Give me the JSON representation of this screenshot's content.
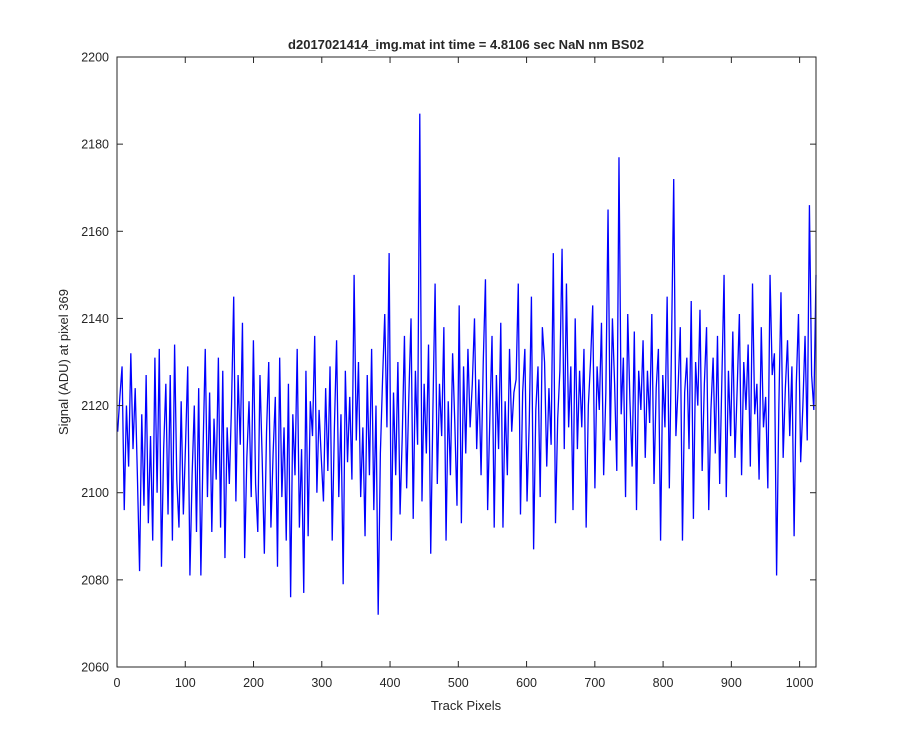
{
  "chart_data": {
    "type": "line",
    "title": "d2017021414_img.mat int time = 4.8106 sec  NaN nm BS02",
    "xlabel": "Track Pixels",
    "ylabel": "Signal (ADU) at pixel 369",
    "xlim": [
      0,
      1024
    ],
    "ylim": [
      2060,
      2200
    ],
    "xticks": [
      0,
      100,
      200,
      300,
      400,
      500,
      600,
      700,
      800,
      900,
      1000
    ],
    "yticks": [
      2060,
      2080,
      2100,
      2120,
      2140,
      2160,
      2180,
      2200
    ],
    "xtick_labels": [
      "0",
      "100",
      "200",
      "300",
      "400",
      "500",
      "600",
      "700",
      "800",
      "900",
      "1000"
    ],
    "ytick_labels": [
      "2060",
      "2080",
      "2100",
      "2120",
      "2140",
      "2160",
      "2180",
      "2200"
    ],
    "grid": false,
    "legend": "none",
    "series": [
      {
        "color": "#0000ff",
        "x_start": 1,
        "x_step": 1,
        "values": [
          2114,
          2122,
          2129,
          2096,
          2120,
          2106,
          2132,
          2110,
          2124,
          2104,
          2082,
          2118,
          2097,
          2127,
          2093,
          2113,
          2089,
          2131,
          2100,
          2133,
          2083,
          2110,
          2125,
          2095,
          2127,
          2089,
          2134,
          2103,
          2092,
          2121,
          2095,
          2111,
          2129,
          2081,
          2104,
          2120,
          2091,
          2124,
          2081,
          2110,
          2133,
          2099,
          2123,
          2091,
          2117,
          2103,
          2131,
          2092,
          2128,
          2085,
          2115,
          2102,
          2120,
          2145,
          2098,
          2127,
          2111,
          2139,
          2085,
          2108,
          2121,
          2099,
          2135,
          2102,
          2091,
          2127,
          2108,
          2086,
          2114,
          2130,
          2092,
          2109,
          2122,
          2083,
          2131,
          2099,
          2115,
          2089,
          2125,
          2076,
          2118,
          2104,
          2133,
          2092,
          2110,
          2077,
          2128,
          2090,
          2121,
          2113,
          2136,
          2100,
          2119,
          2108,
          2098,
          2124,
          2105,
          2129,
          2089,
          2115,
          2135,
          2099,
          2118,
          2079,
          2128,
          2107,
          2122,
          2103,
          2150,
          2112,
          2130,
          2099,
          2115,
          2090,
          2127,
          2104,
          2133,
          2096,
          2120,
          2072,
          2109,
          2126,
          2141,
          2115,
          2155,
          2089,
          2123,
          2104,
          2130,
          2095,
          2113,
          2136,
          2101,
          2122,
          2140,
          2094,
          2128,
          2111,
          2187,
          2098,
          2125,
          2109,
          2134,
          2086,
          2119,
          2148,
          2102,
          2125,
          2113,
          2138,
          2089,
          2121,
          2104,
          2132,
          2116,
          2097,
          2143,
          2093,
          2129,
          2109,
          2133,
          2115,
          2125,
          2140,
          2110,
          2126,
          2104,
          2130,
          2149,
          2096,
          2117,
          2136,
          2092,
          2127,
          2110,
          2139,
          2092,
          2121,
          2104,
          2133,
          2114,
          2123,
          2126,
          2148,
          2095,
          2123,
          2133,
          2098,
          2116,
          2145,
          2087,
          2119,
          2129,
          2099,
          2138,
          2130,
          2106,
          2124,
          2111,
          2155,
          2093,
          2117,
          2128,
          2156,
          2110,
          2148,
          2115,
          2129,
          2096,
          2140,
          2110,
          2128,
          2115,
          2133,
          2092,
          2120,
          2130,
          2143,
          2101,
          2129,
          2119,
          2139,
          2104,
          2123,
          2165,
          2112,
          2140,
          2125,
          2105,
          2177,
          2118,
          2131,
          2099,
          2141,
          2121,
          2106,
          2137,
          2096,
          2128,
          2119,
          2135,
          2108,
          2128,
          2116,
          2141,
          2102,
          2124,
          2133,
          2089,
          2127,
          2115,
          2145,
          2101,
          2134,
          2172,
          2113,
          2124,
          2138,
          2089,
          2123,
          2131,
          2110,
          2144,
          2094,
          2130,
          2120,
          2142,
          2105,
          2125,
          2138,
          2096,
          2119,
          2131,
          2109,
          2136,
          2102,
          2126,
          2150,
          2099,
          2128,
          2113,
          2137,
          2108,
          2124,
          2141,
          2104,
          2130,
          2119,
          2134,
          2106,
          2148,
          2118,
          2125,
          2103,
          2138,
          2115,
          2122,
          2101,
          2150,
          2127,
          2132,
          2081,
          2119,
          2146,
          2108,
          2124,
          2135,
          2113,
          2129,
          2090,
          2125,
          2141,
          2107,
          2120,
          2136,
          2112,
          2166,
          2127,
          2119,
          2150
        ]
      }
    ]
  }
}
